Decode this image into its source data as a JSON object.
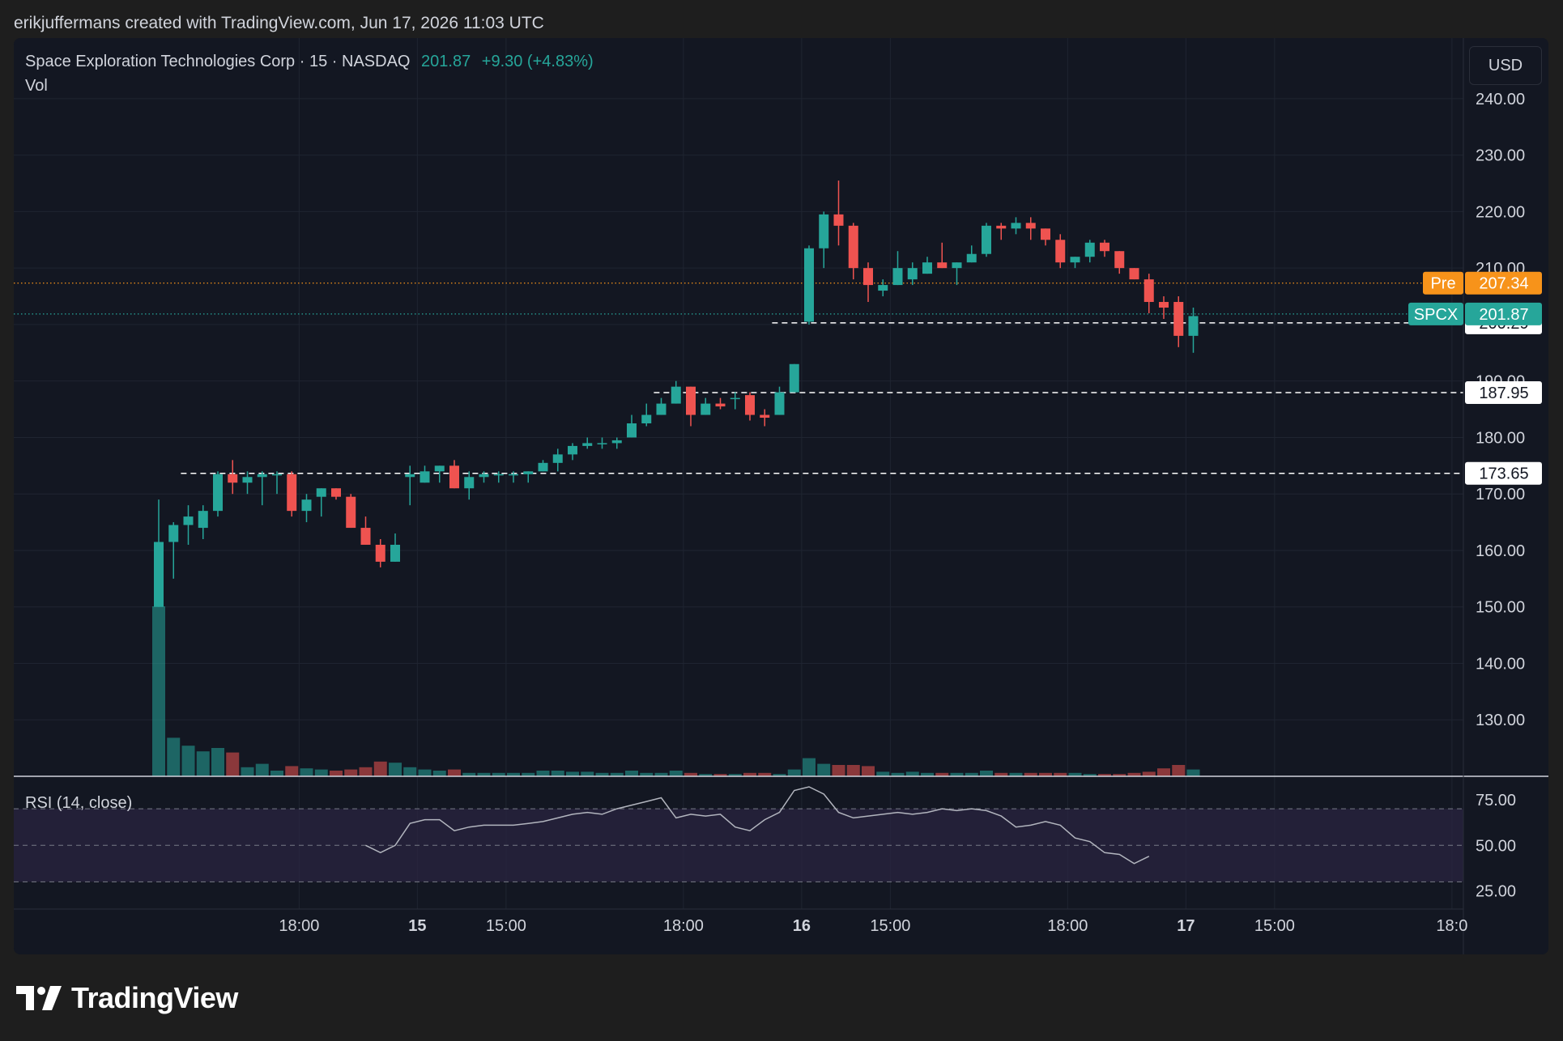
{
  "header": {
    "credit": "erikjuffermans created with TradingView.com, Jun 17, 2026 11:03 UTC"
  },
  "legend": {
    "name": "Space Exploration Technologies Corp",
    "interval": "15",
    "exchange": "NASDAQ",
    "price": "201.87",
    "change": "+9.30 (+4.83%)",
    "vol_label": "Vol",
    "rsi_label": "RSI (14, close)"
  },
  "currency_button": "USD",
  "branding": {
    "logo_text": "TradingView"
  },
  "colors": {
    "background": "#131722",
    "up": "#26a69a",
    "down": "#ef5350",
    "pre": "#f7931a",
    "grid": "#1f2431",
    "rsi_line": "#b2b5be",
    "rsi_band": "#2a2440"
  },
  "chart_data": {
    "type": "candlestick",
    "price_axis": {
      "min": 120,
      "max": 245,
      "ticks": [
        130,
        140,
        150,
        160,
        170,
        180,
        190,
        200,
        210,
        220,
        230,
        240
      ],
      "tick_labels": [
        "130.00",
        "140.00",
        "150.00",
        "160.00",
        "170.00",
        "180.00",
        "190.00",
        "200.00",
        "210.00",
        "220.00",
        "230.00",
        "240.00"
      ]
    },
    "time_axis": {
      "labels": [
        {
          "text": "18:00",
          "bold": false,
          "slot": 9.5
        },
        {
          "text": "15",
          "bold": true,
          "slot": 17.5
        },
        {
          "text": "15:00",
          "bold": false,
          "slot": 23.5
        },
        {
          "text": "18:00",
          "bold": false,
          "slot": 35.5
        },
        {
          "text": "16",
          "bold": true,
          "slot": 43.5
        },
        {
          "text": "15:00",
          "bold": false,
          "slot": 49.5
        },
        {
          "text": "18:00",
          "bold": false,
          "slot": 61.5
        },
        {
          "text": "17",
          "bold": true,
          "slot": 69.5
        },
        {
          "text": "15:00",
          "bold": false,
          "slot": 75.5
        },
        {
          "text": "18:0",
          "bold": false,
          "slot": 87.5
        }
      ]
    },
    "candles": [
      {
        "o": 150,
        "h": 169,
        "l": 150,
        "c": 161.5,
        "v": 150
      },
      {
        "o": 161.5,
        "h": 165,
        "l": 155,
        "c": 164.5,
        "v": 34
      },
      {
        "o": 164.5,
        "h": 168,
        "l": 161,
        "c": 166,
        "v": 27
      },
      {
        "o": 164,
        "h": 168,
        "l": 162,
        "c": 167,
        "v": 22
      },
      {
        "o": 167,
        "h": 174,
        "l": 166,
        "c": 173.5,
        "v": 25
      },
      {
        "o": 173.5,
        "h": 176,
        "l": 170,
        "c": 172,
        "v": 21
      },
      {
        "o": 172,
        "h": 174,
        "l": 170,
        "c": 173,
        "v": 8
      },
      {
        "o": 173,
        "h": 174,
        "l": 168,
        "c": 173.5,
        "v": 11
      },
      {
        "o": 173.5,
        "h": 174,
        "l": 170,
        "c": 173.5,
        "v": 5
      },
      {
        "o": 173.5,
        "h": 174,
        "l": 166,
        "c": 167,
        "v": 9
      },
      {
        "o": 167,
        "h": 170,
        "l": 165,
        "c": 169,
        "v": 7
      },
      {
        "o": 169.5,
        "h": 171,
        "l": 166,
        "c": 171,
        "v": 6
      },
      {
        "o": 171,
        "h": 171,
        "l": 169,
        "c": 169.5,
        "v": 5
      },
      {
        "o": 169.5,
        "h": 170,
        "l": 164,
        "c": 164,
        "v": 6
      },
      {
        "o": 164,
        "h": 166,
        "l": 161,
        "c": 161,
        "v": 8
      },
      {
        "o": 161,
        "h": 162,
        "l": 157,
        "c": 158,
        "v": 13
      },
      {
        "o": 158,
        "h": 163,
        "l": 158,
        "c": 161,
        "v": 12
      },
      {
        "o": 173,
        "h": 175,
        "l": 168,
        "c": 173.5,
        "v": 8
      },
      {
        "o": 172,
        "h": 175,
        "l": 172,
        "c": 174,
        "v": 6
      },
      {
        "o": 174,
        "h": 175,
        "l": 172,
        "c": 175,
        "v": 5
      },
      {
        "o": 175,
        "h": 176,
        "l": 171,
        "c": 171,
        "v": 6
      },
      {
        "o": 171,
        "h": 174,
        "l": 169,
        "c": 173,
        "v": 3
      },
      {
        "o": 173,
        "h": 174,
        "l": 172,
        "c": 173.5,
        "v": 3
      },
      {
        "o": 173.5,
        "h": 174,
        "l": 172,
        "c": 173.5,
        "v": 3
      },
      {
        "o": 173.5,
        "h": 174,
        "l": 172,
        "c": 173.5,
        "v": 3
      },
      {
        "o": 173.5,
        "h": 174,
        "l": 172,
        "c": 174,
        "v": 3
      },
      {
        "o": 174,
        "h": 176,
        "l": 174,
        "c": 175.5,
        "v": 5
      },
      {
        "o": 175.5,
        "h": 178,
        "l": 174,
        "c": 177,
        "v": 5
      },
      {
        "o": 177,
        "h": 179,
        "l": 176,
        "c": 178.5,
        "v": 4
      },
      {
        "o": 178.5,
        "h": 180,
        "l": 178,
        "c": 179,
        "v": 4
      },
      {
        "o": 179,
        "h": 180,
        "l": 178,
        "c": 179,
        "v": 3
      },
      {
        "o": 179,
        "h": 180,
        "l": 178,
        "c": 179.5,
        "v": 3
      },
      {
        "o": 180,
        "h": 184,
        "l": 180,
        "c": 182.5,
        "v": 5
      },
      {
        "o": 182.5,
        "h": 186,
        "l": 182,
        "c": 184,
        "v": 3
      },
      {
        "o": 184,
        "h": 187,
        "l": 184,
        "c": 186,
        "v": 3
      },
      {
        "o": 186,
        "h": 190,
        "l": 186,
        "c": 189,
        "v": 5
      },
      {
        "o": 189,
        "h": 189,
        "l": 182,
        "c": 184,
        "v": 3
      },
      {
        "o": 184,
        "h": 187,
        "l": 184,
        "c": 186,
        "v": 2
      },
      {
        "o": 186,
        "h": 187,
        "l": 185,
        "c": 185.5,
        "v": 2
      },
      {
        "o": 187,
        "h": 188,
        "l": 185,
        "c": 187,
        "v": 2
      },
      {
        "o": 187.5,
        "h": 188,
        "l": 183,
        "c": 184,
        "v": 3
      },
      {
        "o": 184,
        "h": 185,
        "l": 182,
        "c": 183.5,
        "v": 3
      },
      {
        "o": 184,
        "h": 189,
        "l": 184,
        "c": 188,
        "v": 2
      },
      {
        "o": 188,
        "h": 193,
        "l": 188,
        "c": 193,
        "v": 6
      },
      {
        "o": 200.5,
        "h": 214,
        "l": 200,
        "c": 213.5,
        "v": 16
      },
      {
        "o": 213.5,
        "h": 220,
        "l": 210,
        "c": 219.5,
        "v": 11
      },
      {
        "o": 219.5,
        "h": 225.5,
        "l": 214,
        "c": 217.5,
        "v": 10
      },
      {
        "o": 217.5,
        "h": 218,
        "l": 208,
        "c": 210,
        "v": 10
      },
      {
        "o": 210,
        "h": 211,
        "l": 204,
        "c": 207,
        "v": 9
      },
      {
        "o": 206,
        "h": 208,
        "l": 205,
        "c": 207,
        "v": 4
      },
      {
        "o": 207,
        "h": 213,
        "l": 207,
        "c": 210,
        "v": 3
      },
      {
        "o": 208,
        "h": 211,
        "l": 207,
        "c": 210,
        "v": 4
      },
      {
        "o": 209,
        "h": 212,
        "l": 209,
        "c": 211,
        "v": 3
      },
      {
        "o": 211,
        "h": 214.5,
        "l": 210,
        "c": 210,
        "v": 3
      },
      {
        "o": 210,
        "h": 211,
        "l": 207,
        "c": 211,
        "v": 3
      },
      {
        "o": 211,
        "h": 214,
        "l": 211,
        "c": 212.5,
        "v": 3
      },
      {
        "o": 212.5,
        "h": 218,
        "l": 212,
        "c": 217.5,
        "v": 5
      },
      {
        "o": 217.5,
        "h": 218,
        "l": 215,
        "c": 217,
        "v": 3
      },
      {
        "o": 217,
        "h": 219,
        "l": 216,
        "c": 218,
        "v": 3
      },
      {
        "o": 218,
        "h": 219,
        "l": 215,
        "c": 217,
        "v": 3
      },
      {
        "o": 217,
        "h": 217,
        "l": 214,
        "c": 215,
        "v": 3
      },
      {
        "o": 215,
        "h": 216,
        "l": 210,
        "c": 211,
        "v": 3
      },
      {
        "o": 211,
        "h": 212,
        "l": 210,
        "c": 212,
        "v": 3
      },
      {
        "o": 212,
        "h": 215,
        "l": 211,
        "c": 214.5,
        "v": 2
      },
      {
        "o": 214.5,
        "h": 215,
        "l": 212,
        "c": 213,
        "v": 2
      },
      {
        "o": 213,
        "h": 213,
        "l": 209,
        "c": 210,
        "v": 2
      },
      {
        "o": 210,
        "h": 210,
        "l": 208,
        "c": 208,
        "v": 3
      },
      {
        "o": 208,
        "h": 209,
        "l": 202,
        "c": 204,
        "v": 4
      },
      {
        "o": 204,
        "h": 205,
        "l": 201,
        "c": 203,
        "v": 7
      },
      {
        "o": 204,
        "h": 205,
        "l": 196,
        "c": 198,
        "v": 10
      },
      {
        "o": 198,
        "h": 203,
        "l": 195,
        "c": 201.5,
        "v": 6
      }
    ],
    "horizontal_lines": [
      {
        "price": 200.29,
        "label": "200.29",
        "from_slot": 41.5
      },
      {
        "price": 187.95,
        "label": "187.95",
        "from_slot": 33.5
      },
      {
        "price": 173.65,
        "label": "173.65",
        "from_slot": 1.5
      }
    ],
    "price_tags": [
      {
        "kind": "pre",
        "name": "Pre",
        "price": 207.34,
        "value": "207.34"
      },
      {
        "kind": "last",
        "name": "SPCX",
        "price": 201.87,
        "value": "201.87"
      }
    ],
    "rsi": {
      "min": 20,
      "max": 82,
      "ticks": [
        75,
        50,
        25
      ],
      "tick_labels": [
        "75.00",
        "50.00",
        "25.00"
      ],
      "upper": 70,
      "middle": 50,
      "lower": 30,
      "start_slot": 14,
      "values": [
        50,
        46,
        50,
        62,
        64,
        64,
        58,
        60,
        61,
        61,
        61,
        62,
        63,
        65,
        67,
        68,
        67,
        70,
        72,
        74,
        76,
        65,
        67,
        66,
        67,
        60,
        58,
        64,
        68,
        80,
        82,
        78,
        68,
        65,
        66,
        67,
        68,
        67,
        68,
        70,
        69,
        70,
        69,
        66,
        60,
        61,
        63,
        61,
        54,
        52,
        46,
        45,
        40,
        44
      ]
    }
  }
}
